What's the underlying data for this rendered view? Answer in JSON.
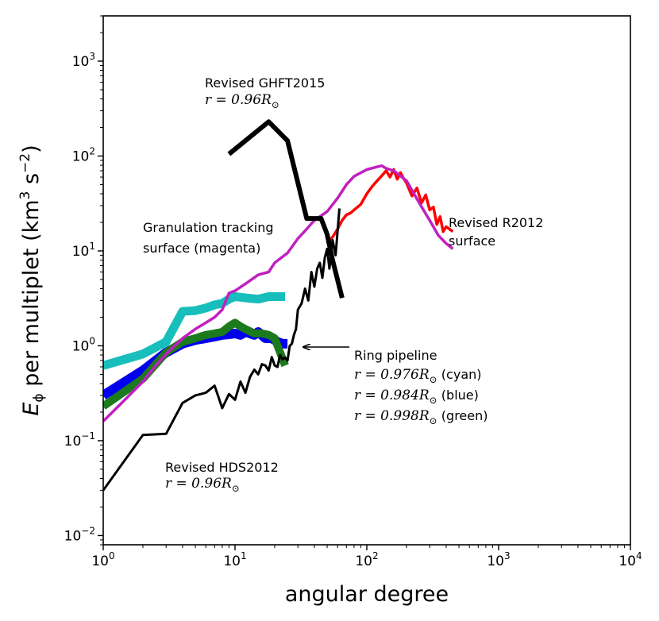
{
  "chart_data": {
    "type": "line",
    "title": "",
    "xlabel": "angular degree",
    "ylabel": "E_φ per multiplet (km³ s⁻²)",
    "ylabel_parts": {
      "symbol": "E",
      "subscript": "ϕ",
      "text": " per multiplet (km",
      "sup1": "3",
      "mid": " s",
      "sup2": "−2",
      "end": ")"
    },
    "xscale": "log",
    "yscale": "log",
    "xlim": [
      1,
      10000
    ],
    "ylim": [
      0.008,
      3000
    ],
    "xticks": [
      {
        "value": 1,
        "base": "10",
        "exp": "0"
      },
      {
        "value": 10,
        "base": "10",
        "exp": "1"
      },
      {
        "value": 100,
        "base": "10",
        "exp": "2"
      },
      {
        "value": 1000,
        "base": "10",
        "exp": "3"
      },
      {
        "value": 10000,
        "base": "10",
        "exp": "4"
      }
    ],
    "yticks": [
      {
        "value": 0.01,
        "base": "10",
        "exp": "−2"
      },
      {
        "value": 0.1,
        "base": "10",
        "exp": "−1"
      },
      {
        "value": 1,
        "base": "10",
        "exp": "0"
      },
      {
        "value": 10,
        "base": "10",
        "exp": "1"
      },
      {
        "value": 100,
        "base": "10",
        "exp": "2"
      },
      {
        "value": 1000,
        "base": "10",
        "exp": "3"
      }
    ],
    "grid": false,
    "series": [
      {
        "name": "Ring pipeline r=0.976 (cyan)",
        "color": "#17bebb",
        "width": 11,
        "x": [
          1,
          2,
          3,
          4,
          5,
          6,
          7,
          8,
          9,
          10,
          12,
          15,
          18,
          20,
          24
        ],
        "y": [
          0.62,
          0.82,
          1.1,
          2.3,
          2.35,
          2.5,
          2.7,
          2.8,
          3.1,
          3.3,
          3.2,
          3.1,
          3.3,
          3.3,
          3.3
        ]
      },
      {
        "name": "Ring pipeline r=0.984 (blue)",
        "color": "#0000ee",
        "width": 12,
        "x": [
          1,
          2,
          3,
          4,
          5,
          6,
          7,
          8,
          9,
          10,
          11,
          12,
          14,
          15,
          17,
          19,
          21,
          23,
          25
        ],
        "y": [
          0.3,
          0.55,
          0.85,
          1.05,
          1.15,
          1.2,
          1.25,
          1.3,
          1.32,
          1.35,
          1.3,
          1.4,
          1.3,
          1.4,
          1.2,
          1.2,
          1.1,
          1.05,
          1.05
        ]
      },
      {
        "name": "Ring pipeline r=0.998 (green)",
        "color": "#1b7a1b",
        "width": 10,
        "x": [
          1,
          2,
          3,
          4,
          5,
          6,
          7,
          8,
          9,
          10,
          11,
          12,
          14,
          16,
          18,
          20,
          22,
          24
        ],
        "y": [
          0.23,
          0.45,
          0.85,
          1.1,
          1.2,
          1.3,
          1.35,
          1.4,
          1.6,
          1.75,
          1.6,
          1.5,
          1.35,
          1.35,
          1.3,
          1.2,
          0.85,
          0.62
        ]
      },
      {
        "name": "Revised R2012 surface",
        "color": "#ff0000",
        "width": 3.5,
        "x": [
          50,
          55,
          60,
          65,
          70,
          75,
          80,
          90,
          100,
          110,
          120,
          130,
          140,
          150,
          160,
          170,
          180,
          190,
          200,
          220,
          240,
          260,
          280,
          300,
          320,
          340,
          360,
          380,
          400,
          450
        ],
        "y": [
          12,
          14,
          17,
          21,
          24,
          25,
          27,
          31,
          40,
          48,
          55,
          62,
          70,
          60,
          72,
          57,
          67,
          58,
          52,
          38,
          46,
          32,
          39,
          27,
          29,
          19,
          23,
          16,
          18,
          16
        ]
      },
      {
        "name": "Granulation tracking surface (magenta)",
        "color": "#c020c0",
        "width": 3.5,
        "x": [
          1,
          1.5,
          2,
          2.5,
          3,
          4,
          5,
          6,
          7,
          8,
          9,
          10,
          12,
          15,
          18,
          20,
          25,
          30,
          35,
          40,
          50,
          60,
          70,
          80,
          100,
          120,
          130,
          140,
          160,
          200,
          250,
          300,
          350,
          400,
          450
        ],
        "y": [
          0.16,
          0.28,
          0.42,
          0.62,
          0.82,
          1.2,
          1.5,
          1.75,
          2.0,
          2.4,
          3.6,
          3.8,
          4.5,
          5.6,
          6.0,
          7.5,
          9.5,
          13.5,
          17,
          21,
          26,
          36,
          50,
          61,
          72,
          77,
          79,
          74,
          70,
          55,
          32,
          21,
          14.5,
          12,
          10.5
        ]
      },
      {
        "name": "Revised HDS2012",
        "color": "#000000",
        "width": 3,
        "x": [
          1,
          2,
          3,
          4,
          5,
          6,
          7,
          8,
          9,
          10,
          11,
          12,
          13,
          14,
          15,
          16,
          17,
          18,
          19,
          20,
          21,
          22,
          23,
          24,
          25,
          26,
          27,
          28,
          29,
          30,
          32,
          34,
          36,
          38,
          40,
          42,
          44,
          46,
          48,
          50,
          52,
          55,
          58,
          62
        ],
        "y": [
          0.03,
          0.115,
          0.118,
          0.25,
          0.3,
          0.32,
          0.38,
          0.22,
          0.31,
          0.27,
          0.42,
          0.32,
          0.47,
          0.56,
          0.5,
          0.64,
          0.62,
          0.55,
          0.76,
          0.62,
          0.6,
          0.8,
          0.72,
          0.75,
          0.7,
          1.0,
          1.05,
          1.3,
          1.5,
          2.4,
          2.8,
          4.0,
          3.0,
          6.0,
          4.2,
          6.5,
          7.5,
          5.2,
          8.5,
          10.5,
          6.5,
          13,
          9,
          28
        ]
      },
      {
        "name": "Revised GHFT2015",
        "color": "#000000",
        "width": 6,
        "x": [
          9,
          18,
          25,
          35,
          40,
          45,
          50,
          55,
          65
        ],
        "y": [
          105,
          230,
          145,
          22,
          22,
          22,
          15,
          8,
          3.2
        ]
      }
    ],
    "annotations": [
      {
        "id": "ghft",
        "line1": "Revised GHFT2015",
        "math": "r = 0.96R",
        "sub": "⊙"
      },
      {
        "id": "gran",
        "line1": "Granulation tracking",
        "line2": "surface (magenta)"
      },
      {
        "id": "r2012",
        "line1": "Revised R2012",
        "line2": "surface"
      },
      {
        "id": "ring",
        "line1": "Ring pipeline",
        "rows": [
          {
            "math": "r = 0.976R",
            "sub": "⊙",
            "label": " (cyan)"
          },
          {
            "math": "r = 0.984R",
            "sub": "⊙",
            "label": " (blue)"
          },
          {
            "math": "r = 0.998R",
            "sub": "⊙",
            "label": " (green)"
          }
        ]
      },
      {
        "id": "hds",
        "line1": "Revised HDS2012",
        "math": "r = 0.96R",
        "sub": "⊙"
      }
    ]
  }
}
